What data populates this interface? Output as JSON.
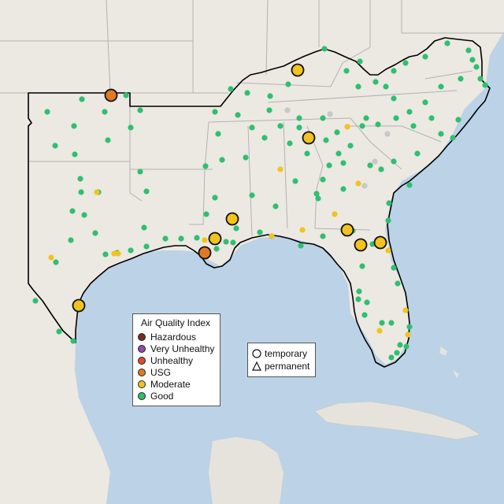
{
  "map": {
    "colors": {
      "ocean": "#bcd2e6",
      "land": "#ece8e2",
      "region_border": "#000000",
      "state_border": "#b3b3b3",
      "island": "#e6e3dd"
    }
  },
  "legend": {
    "title": "Air Quality Index",
    "items": [
      {
        "label": "Hazardous",
        "color": "#7b2b24"
      },
      {
        "label": "Very Unhealthy",
        "color": "#8e4fa8"
      },
      {
        "label": "Unhealthy",
        "color": "#e04a2e"
      },
      {
        "label": "USG",
        "color": "#e07a22"
      },
      {
        "label": "Moderate",
        "color": "#f2c31c"
      },
      {
        "label": "Good",
        "color": "#2fbf71"
      }
    ]
  },
  "type_legend": {
    "items": [
      {
        "label": "temporary",
        "icon": "circle-icon"
      },
      {
        "label": "permanent",
        "icon": "triangle-icon"
      }
    ]
  }
}
